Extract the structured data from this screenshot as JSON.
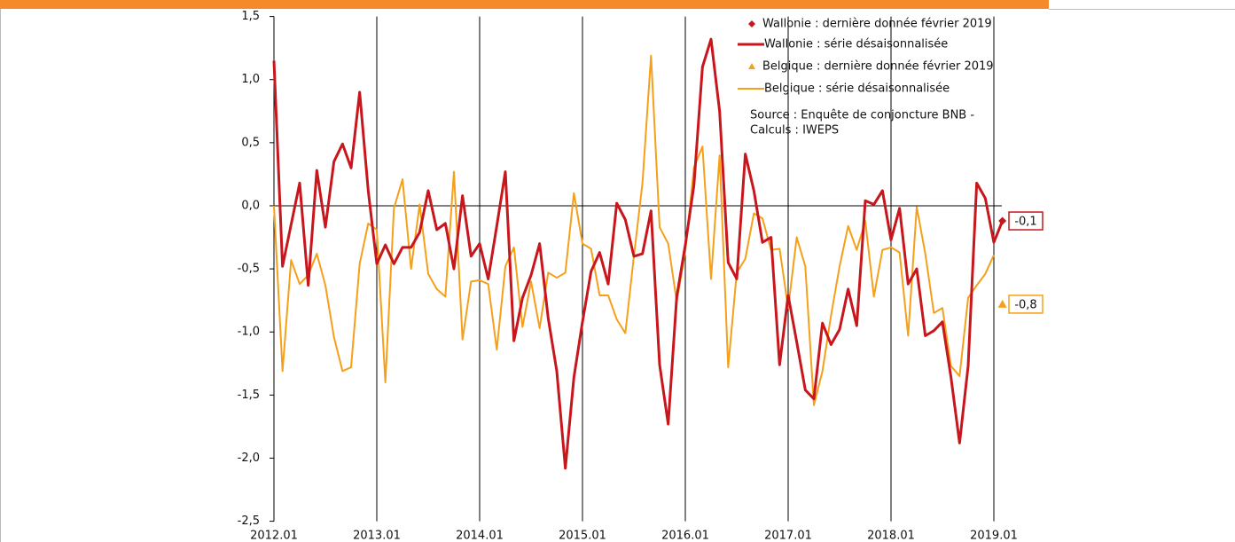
{
  "chart_data": {
    "type": "line",
    "categories": [
      "2012.01",
      null,
      null,
      null,
      null,
      null,
      null,
      null,
      null,
      null,
      null,
      null,
      "2013.01",
      null,
      null,
      null,
      null,
      null,
      null,
      null,
      null,
      null,
      null,
      null,
      "2014.01",
      null,
      null,
      null,
      null,
      null,
      null,
      null,
      null,
      null,
      null,
      null,
      "2015.01",
      null,
      null,
      null,
      null,
      null,
      null,
      null,
      null,
      null,
      null,
      null,
      "2016.01",
      null,
      null,
      null,
      null,
      null,
      null,
      null,
      null,
      null,
      null,
      null,
      "2017.01",
      null,
      null,
      null,
      null,
      null,
      null,
      null,
      null,
      null,
      null,
      null,
      "2018.01",
      null,
      null,
      null,
      null,
      null,
      null,
      null,
      null,
      null,
      null,
      null,
      "2019.01",
      null
    ],
    "ylim": [
      -2.5,
      1.5
    ],
    "yticks": [
      {
        "value": -2.5,
        "label": "-2,5"
      },
      {
        "value": -2,
        "label": "-2,0"
      },
      {
        "value": -1.5,
        "label": "-1,5"
      },
      {
        "value": -1,
        "label": "-1,0"
      },
      {
        "value": -0.5,
        "label": "-0,5"
      },
      {
        "value": 0,
        "label": "0,0"
      },
      {
        "value": 0.5,
        "label": "0,5"
      },
      {
        "value": 1,
        "label": "1,0"
      },
      {
        "value": 1.5,
        "label": "1,5"
      }
    ],
    "grid": true,
    "source": [
      "Source : Enquête de conjoncture BNB -",
      "Calculs : IWEPS"
    ],
    "series": [
      {
        "name": "Wallonie : dernière donnée février 2019",
        "color": "#c8161d",
        "marker": "diamond",
        "values": [
          null,
          null,
          null,
          null,
          null,
          null,
          null,
          null,
          null,
          null,
          null,
          null,
          null,
          null,
          null,
          null,
          null,
          null,
          null,
          null,
          null,
          null,
          null,
          null,
          null,
          null,
          null,
          null,
          null,
          null,
          null,
          null,
          null,
          null,
          null,
          null,
          null,
          null,
          null,
          null,
          null,
          null,
          null,
          null,
          null,
          null,
          null,
          null,
          null,
          null,
          null,
          null,
          null,
          null,
          null,
          null,
          null,
          null,
          null,
          null,
          null,
          null,
          null,
          null,
          null,
          null,
          null,
          null,
          null,
          null,
          null,
          null,
          null,
          null,
          null,
          null,
          null,
          null,
          null,
          null,
          null,
          null,
          null,
          null,
          null,
          -0.12
        ],
        "value_labels": [
          null,
          null,
          null,
          null,
          null,
          null,
          null,
          null,
          null,
          null,
          null,
          null,
          null,
          null,
          null,
          null,
          null,
          null,
          null,
          null,
          null,
          null,
          null,
          null,
          null,
          null,
          null,
          null,
          null,
          null,
          null,
          null,
          null,
          null,
          null,
          null,
          null,
          null,
          null,
          null,
          null,
          null,
          null,
          null,
          null,
          null,
          null,
          null,
          null,
          null,
          null,
          null,
          null,
          null,
          null,
          null,
          null,
          null,
          null,
          null,
          null,
          null,
          null,
          null,
          null,
          null,
          null,
          null,
          null,
          null,
          null,
          null,
          null,
          null,
          null,
          null,
          null,
          null,
          null,
          null,
          null,
          null,
          null,
          null,
          null,
          "-0,1"
        ]
      },
      {
        "name": "Wallonie : série désaisonnalisée",
        "color": "#c8161d",
        "values": [
          1.15,
          -0.48,
          -0.15,
          0.18,
          -0.63,
          0.28,
          -0.17,
          0.35,
          0.49,
          0.3,
          0.9,
          0.12,
          -0.46,
          -0.31,
          -0.46,
          -0.33,
          -0.33,
          -0.21,
          0.12,
          -0.19,
          -0.14,
          -0.5,
          0.08,
          -0.4,
          -0.3,
          -0.58,
          -0.16,
          0.27,
          -1.07,
          -0.73,
          -0.55,
          -0.3,
          -0.89,
          -1.31,
          -2.08,
          -1.36,
          -0.92,
          -0.52,
          -0.37,
          -0.62,
          0.02,
          -0.11,
          -0.4,
          -0.38,
          -0.04,
          -1.26,
          -1.73,
          -0.72,
          -0.31,
          0.16,
          1.1,
          1.32,
          0.75,
          -0.45,
          -0.58,
          0.41,
          0.12,
          -0.29,
          -0.25,
          -1.26,
          -0.71,
          -1.08,
          -1.46,
          -1.53,
          -0.93,
          -1.1,
          -0.98,
          -0.66,
          -0.95,
          0.04,
          0.01,
          0.12,
          -0.27,
          -0.02,
          -0.62,
          -0.5,
          -1.03,
          -0.99,
          -0.92,
          -1.36,
          -1.88,
          -1.27,
          0.18,
          0.06,
          -0.29,
          -0.12
        ]
      },
      {
        "name": "Belgique : dernière donnée février 2019",
        "color": "#f5a01a",
        "marker": "triangle",
        "values": [
          null,
          null,
          null,
          null,
          null,
          null,
          null,
          null,
          null,
          null,
          null,
          null,
          null,
          null,
          null,
          null,
          null,
          null,
          null,
          null,
          null,
          null,
          null,
          null,
          null,
          null,
          null,
          null,
          null,
          null,
          null,
          null,
          null,
          null,
          null,
          null,
          null,
          null,
          null,
          null,
          null,
          null,
          null,
          null,
          null,
          null,
          null,
          null,
          null,
          null,
          null,
          null,
          null,
          null,
          null,
          null,
          null,
          null,
          null,
          null,
          null,
          null,
          null,
          null,
          null,
          null,
          null,
          null,
          null,
          null,
          null,
          null,
          null,
          null,
          null,
          null,
          null,
          null,
          null,
          null,
          null,
          null,
          null,
          null,
          null,
          -0.78
        ],
        "value_labels": [
          null,
          null,
          null,
          null,
          null,
          null,
          null,
          null,
          null,
          null,
          null,
          null,
          null,
          null,
          null,
          null,
          null,
          null,
          null,
          null,
          null,
          null,
          null,
          null,
          null,
          null,
          null,
          null,
          null,
          null,
          null,
          null,
          null,
          null,
          null,
          null,
          null,
          null,
          null,
          null,
          null,
          null,
          null,
          null,
          null,
          null,
          null,
          null,
          null,
          null,
          null,
          null,
          null,
          null,
          null,
          null,
          null,
          null,
          null,
          null,
          null,
          null,
          null,
          null,
          null,
          null,
          null,
          null,
          null,
          null,
          null,
          null,
          null,
          null,
          null,
          null,
          null,
          null,
          null,
          null,
          null,
          null,
          null,
          null,
          null,
          "-0,8"
        ]
      },
      {
        "name": "Belgique : série désaisonnalisée",
        "color": "#f5a01a",
        "values": [
          0.0,
          -1.31,
          -0.43,
          -0.62,
          -0.55,
          -0.38,
          -0.63,
          -1.04,
          -1.31,
          -1.28,
          -0.46,
          -0.14,
          -0.19,
          -1.4,
          -0.02,
          0.21,
          -0.5,
          0.01,
          -0.54,
          -0.66,
          -0.72,
          0.27,
          -1.06,
          -0.6,
          -0.59,
          -0.62,
          -1.14,
          -0.48,
          -0.33,
          -0.96,
          -0.6,
          -0.97,
          -0.53,
          -0.57,
          -0.53,
          0.1,
          -0.3,
          -0.34,
          -0.71,
          -0.71,
          -0.9,
          -1.01,
          -0.4,
          0.18,
          1.19,
          -0.17,
          -0.3,
          -0.76,
          -0.36,
          0.3,
          0.47,
          -0.58,
          0.4,
          -1.28,
          -0.53,
          -0.42,
          -0.06,
          -0.1,
          -0.35,
          -0.34,
          -0.81,
          -0.25,
          -0.48,
          -1.58,
          -1.31,
          -0.87,
          -0.48,
          -0.16,
          -0.35,
          -0.12,
          -0.72,
          -0.35,
          -0.33,
          -0.37,
          -1.03,
          -0.01,
          -0.38,
          -0.85,
          -0.81,
          -1.27,
          -1.35,
          -0.73,
          -0.63,
          -0.54,
          -0.39,
          null
        ]
      }
    ]
  }
}
